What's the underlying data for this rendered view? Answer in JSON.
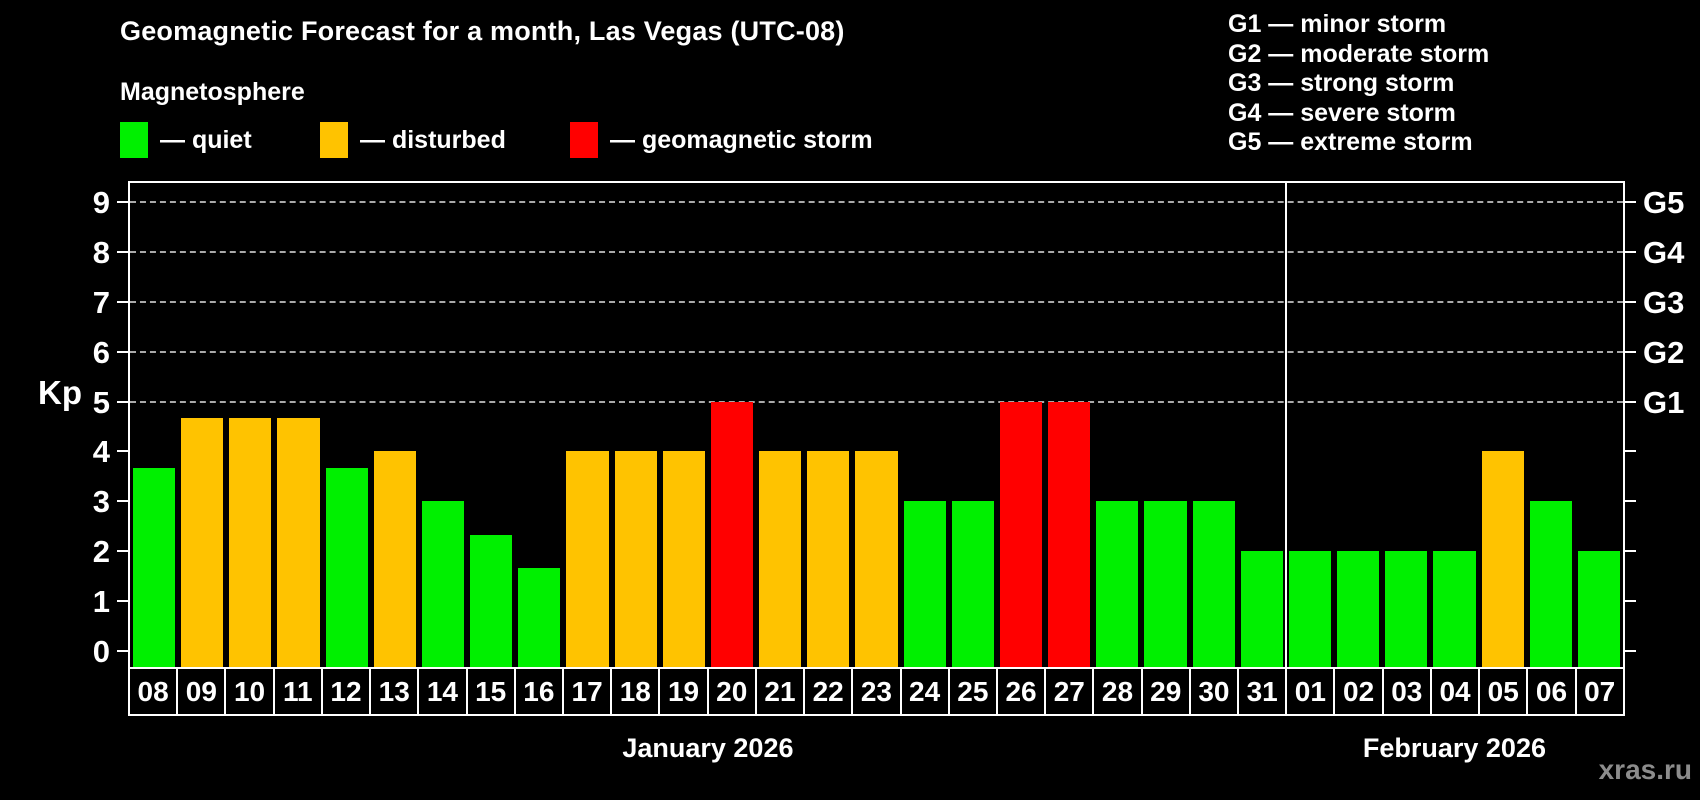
{
  "header": {
    "title": "Geomagnetic Forecast for a month, Las Vegas (UTC-08)",
    "subtitle": "Magnetosphere"
  },
  "legend": {
    "items": [
      {
        "key": "quiet",
        "label": "— quiet",
        "color": "#00f000"
      },
      {
        "key": "disturbed",
        "label": "— disturbed",
        "color": "#ffc300"
      },
      {
        "key": "storm",
        "label": "— geomagnetic storm",
        "color": "#ff0000"
      }
    ]
  },
  "g_legend": [
    "G1 — minor storm",
    "G2 — moderate storm",
    "G3 — strong storm",
    "G4 — severe storm",
    "G5 — extreme storm"
  ],
  "watermark": "xras.ru",
  "chart_data": {
    "type": "bar",
    "title": "Geomagnetic Forecast for a month, Las Vegas (UTC-08)",
    "ylabel": "Kp",
    "ylim": [
      -0.32,
      9.4
    ],
    "yticks": [
      0,
      1,
      2,
      3,
      4,
      5,
      6,
      7,
      8,
      9
    ],
    "grid": "dashed horizontal lines at Kp 5-9 only",
    "g_scale": [
      {
        "kp": 5,
        "label": "G1"
      },
      {
        "kp": 6,
        "label": "G2"
      },
      {
        "kp": 7,
        "label": "G3"
      },
      {
        "kp": 8,
        "label": "G4"
      },
      {
        "kp": 9,
        "label": "G5"
      }
    ],
    "months": [
      {
        "label": "January 2026",
        "days": 24
      },
      {
        "label": "February 2026",
        "days": 7
      }
    ],
    "categories": [
      "08",
      "09",
      "10",
      "11",
      "12",
      "13",
      "14",
      "15",
      "16",
      "17",
      "18",
      "19",
      "20",
      "21",
      "22",
      "23",
      "24",
      "25",
      "26",
      "27",
      "28",
      "29",
      "30",
      "31",
      "01",
      "02",
      "03",
      "04",
      "05",
      "06",
      "07"
    ],
    "values": [
      3.67,
      4.67,
      4.67,
      4.67,
      3.67,
      4,
      3,
      2.33,
      1.67,
      4,
      4,
      4,
      5,
      4,
      4,
      4,
      3,
      3,
      5,
      5,
      3,
      3,
      3,
      2,
      2,
      2,
      2,
      2,
      4,
      3,
      2
    ],
    "statuses": [
      "quiet",
      "disturbed",
      "disturbed",
      "disturbed",
      "quiet",
      "disturbed",
      "quiet",
      "quiet",
      "quiet",
      "disturbed",
      "disturbed",
      "disturbed",
      "storm",
      "disturbed",
      "disturbed",
      "disturbed",
      "quiet",
      "quiet",
      "storm",
      "storm",
      "quiet",
      "quiet",
      "quiet",
      "quiet",
      "quiet",
      "quiet",
      "quiet",
      "quiet",
      "disturbed",
      "quiet",
      "quiet"
    ]
  }
}
